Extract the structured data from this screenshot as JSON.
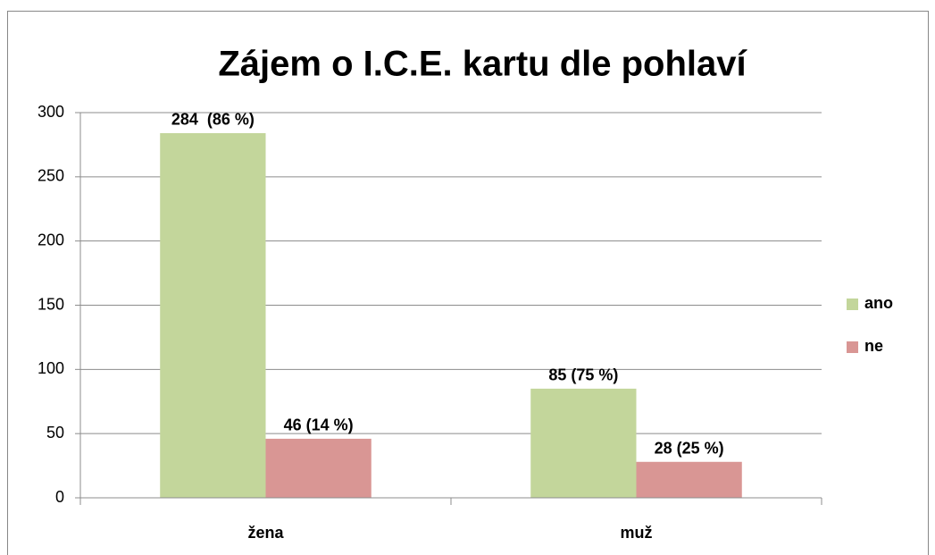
{
  "chart_data": {
    "type": "bar",
    "title": "Zájem o I.C.E. kartu dle pohlaví",
    "categories": [
      "žena",
      "muž"
    ],
    "series": [
      {
        "name": "ano",
        "color": "#c3d69b",
        "values": [
          284,
          85
        ],
        "value_labels": [
          "284  (86 %)",
          "85 (75 %)"
        ]
      },
      {
        "name": "ne",
        "color": "#d99694",
        "values": [
          46,
          28
        ],
        "value_labels": [
          "46 (14 %)",
          "28 (25 %)"
        ]
      }
    ],
    "ylim": [
      0,
      300
    ],
    "yticks": [
      0,
      50,
      100,
      150,
      200,
      250,
      300
    ],
    "grid": true,
    "legend": "right"
  }
}
